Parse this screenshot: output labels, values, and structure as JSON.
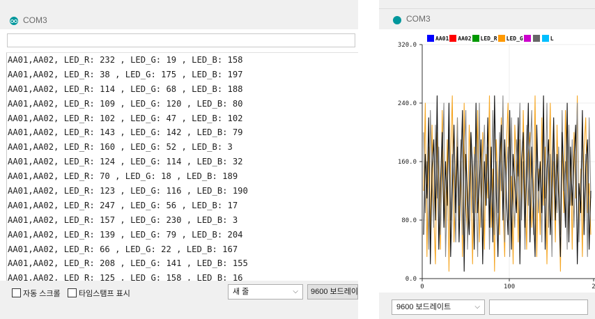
{
  "monitor": {
    "title": "COM3",
    "send_input": "",
    "lines": [
      "AA01,AA02, LED_R: 232 , LED_G: 19 , LED_B: 158",
      "AA01,AA02, LED_R: 38 , LED_G: 175 , LED_B: 197",
      "AA01,AA02, LED_R: 114 , LED_G: 68 , LED_B: 188",
      "AA01,AA02, LED_R: 109 , LED_G: 120 , LED_B: 80",
      "AA01,AA02, LED_R: 102 , LED_G: 47 , LED_B: 102",
      "AA01,AA02, LED_R: 143 , LED_G: 142 , LED_B: 79",
      "AA01,AA02, LED_R: 160 , LED_G: 52 , LED_B: 3",
      "AA01,AA02, LED_R: 124 , LED_G: 114 , LED_B: 32",
      "AA01,AA02, LED_R: 70 , LED_G: 18 , LED_B: 189",
      "AA01,AA02, LED_R: 123 , LED_G: 116 , LED_B: 190",
      "AA01,AA02, LED_R: 247 , LED_G: 56 , LED_B: 17",
      "AA01,AA02, LED_R: 157 , LED_G: 230 , LED_B: 3",
      "AA01,AA02, LED_R: 139 , LED_G: 79 , LED_B: 204",
      "AA01,AA02, LED_R: 66 , LED_G: 22 , LED_B: 167",
      "AA01,AA02, LED_R: 208 , LED_G: 141 , LED_B: 155",
      "AA01,AA02, LED_R: 125 , LED_G: 158 , LED_B: 16"
    ],
    "autoscroll_label": "자동 스크롤",
    "timestamp_label": "타임스탬프 표시",
    "line_ending": "새 줄",
    "baud": "9600 보드레이"
  },
  "plotter": {
    "title": "COM3",
    "baud": "9600 보드레이트",
    "send_input": "",
    "legend": [
      {
        "label": "AA01",
        "color": "#0000ff"
      },
      {
        "label": "AA02",
        "color": "#ff0000"
      },
      {
        "label": "LED_R",
        "color": "#009900"
      },
      {
        "label": "LED_G",
        "color": "#ff9900"
      },
      {
        "label": "",
        "color": "#cc00cc"
      },
      {
        "label": "",
        "color": "#666666"
      },
      {
        "label": "L",
        "color": "#00bfff"
      }
    ]
  },
  "chart_data": {
    "type": "line",
    "ylim": [
      0,
      320
    ],
    "xlim": [
      0,
      200
    ],
    "ytick_labels": [
      "0.0",
      "80.0",
      "160.0",
      "240.0",
      "320.0"
    ],
    "xtick_labels": [
      "0",
      "100",
      "2"
    ],
    "series_colors": [
      "#f5a623",
      "#888888",
      "#111111"
    ],
    "series": [
      {
        "name": "LED_G",
        "color": "#f5a623",
        "values": [
          120,
          240,
          30,
          180,
          60,
          210,
          90,
          20,
          200,
          150,
          40,
          230,
          110,
          70,
          190,
          10,
          170,
          250,
          50,
          130,
          220,
          80,
          160,
          30,
          240,
          100,
          60,
          210,
          140,
          20,
          180,
          90,
          230,
          50,
          120,
          200,
          40,
          170,
          110,
          250,
          70,
          150,
          10,
          190,
          130,
          60,
          220,
          100,
          30,
          180,
          240,
          80,
          140,
          20,
          210,
          160,
          50,
          190,
          90,
          230,
          120,
          40,
          170,
          200,
          70,
          110,
          250,
          30,
          150,
          60,
          220,
          100,
          180,
          20,
          140,
          240,
          80,
          160,
          50,
          210,
          120,
          10,
          190,
          90,
          230,
          140,
          60,
          170,
          40,
          200,
          110,
          250,
          70,
          150,
          30,
          180,
          220,
          90,
          130,
          60
        ]
      },
      {
        "name": "LED_R",
        "color": "#888888",
        "values": [
          200,
          90,
          160,
          40,
          230,
          130,
          70,
          210,
          110,
          180,
          60,
          150,
          240,
          30,
          120,
          200,
          80,
          170,
          140,
          50,
          220,
          100,
          190,
          60,
          160,
          230,
          40,
          130,
          200,
          90,
          170,
          120,
          30,
          240,
          70,
          150,
          210,
          100,
          180,
          40,
          130,
          230,
          60,
          160,
          90,
          200,
          120,
          250,
          50,
          140,
          180,
          30,
          220,
          110,
          70,
          190,
          140,
          240,
          80,
          160,
          40,
          210,
          100,
          170,
          230,
          60,
          130,
          190,
          90,
          150,
          50,
          220,
          110,
          240,
          70,
          170,
          30,
          200,
          140,
          90,
          180,
          60,
          230,
          120,
          160,
          40,
          210,
          100,
          190,
          70,
          150,
          240,
          50,
          130,
          200,
          90,
          170,
          30,
          220,
          110
        ]
      },
      {
        "name": "LED_B",
        "color": "#111111",
        "values": [
          60,
          170,
          110,
          220,
          20,
          150,
          190,
          80,
          250,
          40,
          130,
          200,
          70,
          160,
          100,
          240,
          30,
          120,
          210,
          90,
          180,
          50,
          140,
          230,
          10,
          170,
          110,
          60,
          200,
          150,
          40,
          240,
          90,
          130,
          190,
          20,
          160,
          100,
          220,
          70,
          180,
          50,
          250,
          120,
          30,
          150,
          210,
          80,
          190,
          110,
          60,
          230,
          40,
          170,
          130,
          90,
          220,
          20,
          160,
          200,
          70,
          140,
          240,
          50,
          180,
          100,
          30,
          210,
          120,
          160,
          90,
          250,
          40,
          150,
          190,
          60,
          130,
          220,
          80,
          170,
          110,
          30,
          200,
          140,
          70,
          240,
          50,
          180,
          100,
          160,
          210,
          20,
          130,
          90,
          230,
          60,
          150,
          190,
          40,
          120
        ]
      }
    ]
  }
}
